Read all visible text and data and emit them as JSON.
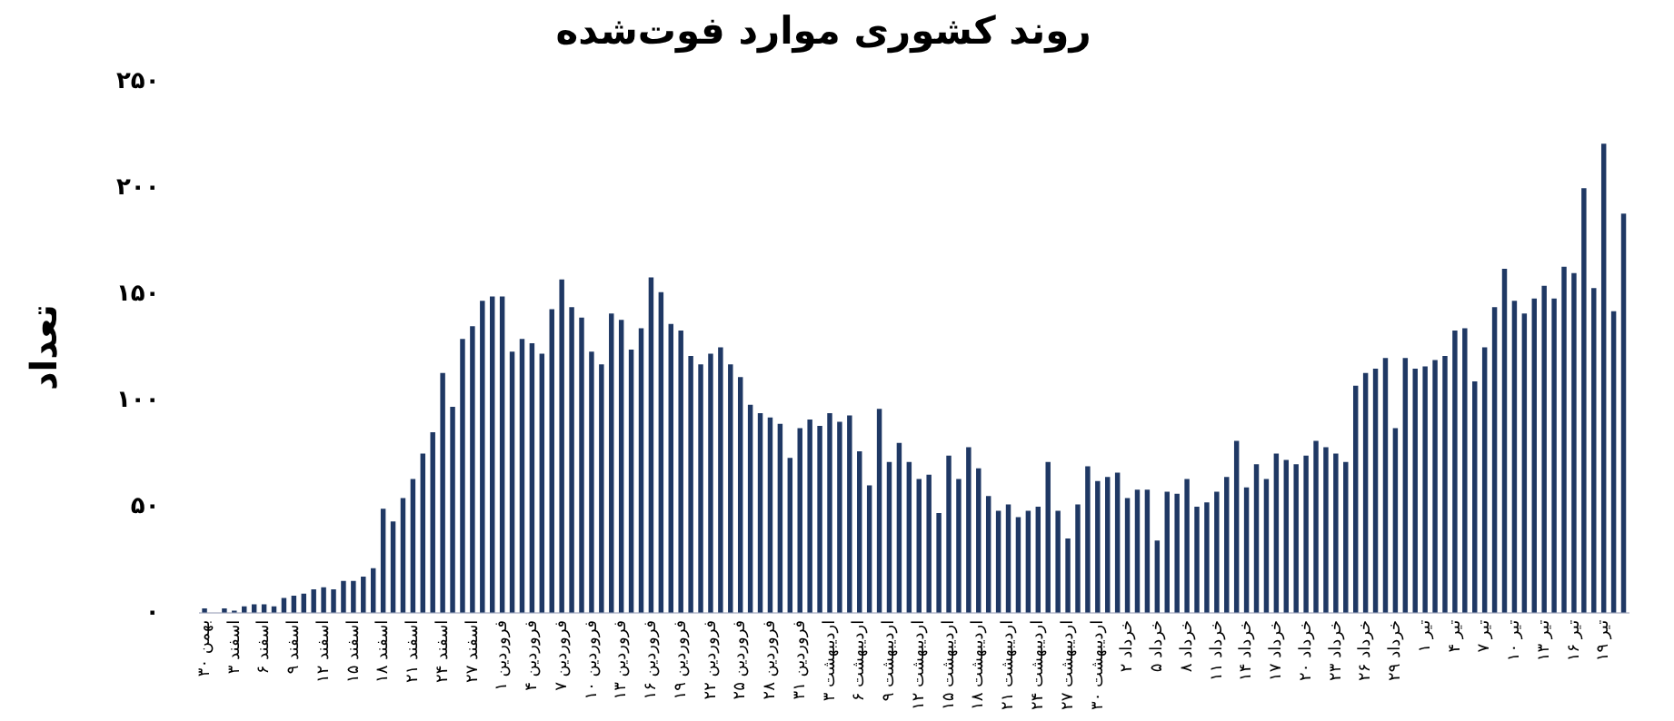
{
  "chart_data": {
    "type": "bar",
    "title": "روند کشوری موارد فوت‌شده",
    "ylabel": "تعداد",
    "categories": [
      "۳۰ بهمن",
      null,
      null,
      "۳ اسفند",
      null,
      null,
      "۶ اسفند",
      null,
      null,
      "۹ اسفند",
      null,
      null,
      "۱۲ اسفند",
      null,
      null,
      "۱۵ اسفند",
      null,
      null,
      "۱۸ اسفند",
      null,
      null,
      "۲۱ اسفند",
      null,
      null,
      "۲۴ اسفند",
      null,
      null,
      "۲۷ اسفند",
      null,
      null,
      "۱ فروردین",
      null,
      null,
      "۴ فروردین",
      null,
      null,
      "۷ فروردین",
      null,
      null,
      "۱۰ فروردین",
      null,
      null,
      "۱۳ فروردین",
      null,
      null,
      "۱۶ فروردین",
      null,
      null,
      "۱۹ فروردین",
      null,
      null,
      "۲۲ فروردین",
      null,
      null,
      "۲۵ فروردین",
      null,
      null,
      "۲۸ فروردین",
      null,
      null,
      "۳۱ فروردین",
      null,
      null,
      "۳ اردیبهشت",
      null,
      null,
      "۶ اردیبهشت",
      null,
      null,
      "۹ اردیبهشت",
      null,
      null,
      "۱۲ اردیبهشت",
      null,
      null,
      "۱۵ اردیبهشت",
      null,
      null,
      "۱۸ اردیبهشت",
      null,
      null,
      "۲۱ اردیبهشت",
      null,
      null,
      "۲۴ اردیبهشت",
      null,
      null,
      "۲۷ اردیبهشت",
      null,
      null,
      "۳۰ اردیبهشت",
      null,
      null,
      "۲ خرداد",
      null,
      null,
      "۵ خرداد",
      null,
      null,
      "۸ خرداد",
      null,
      null,
      "۱۱ خرداد",
      null,
      null,
      "۱۴ خرداد",
      null,
      null,
      "۱۷ خرداد",
      null,
      null,
      "۲۰ خرداد",
      null,
      null,
      "۲۳ خرداد",
      null,
      null,
      "۲۶ خرداد",
      null,
      null,
      "۲۹ خرداد",
      null,
      null,
      "۱ تیر",
      null,
      null,
      "۴ تیر",
      null,
      null,
      "۷ تیر",
      null,
      null,
      "۱۰ تیر",
      null,
      null,
      "۱۳ تیر",
      null,
      null,
      "۱۶ تیر",
      null,
      null,
      "۱۹ تیر",
      null,
      null
    ],
    "values": [
      2,
      0,
      2,
      1,
      3,
      4,
      4,
      3,
      7,
      8,
      9,
      11,
      12,
      11,
      15,
      15,
      17,
      21,
      49,
      43,
      54,
      63,
      75,
      85,
      113,
      97,
      129,
      135,
      147,
      149,
      149,
      123,
      129,
      127,
      122,
      143,
      157,
      144,
      139,
      123,
      117,
      141,
      138,
      124,
      134,
      158,
      151,
      136,
      133,
      121,
      117,
      122,
      125,
      117,
      111,
      98,
      94,
      92,
      89,
      73,
      87,
      91,
      88,
      94,
      90,
      93,
      76,
      60,
      96,
      71,
      80,
      71,
      63,
      65,
      47,
      74,
      63,
      78,
      68,
      55,
      48,
      51,
      45,
      48,
      50,
      71,
      48,
      35,
      51,
      69,
      62,
      64,
      66,
      54,
      58,
      58,
      34,
      57,
      56,
      63,
      50,
      52,
      57,
      64,
      81,
      59,
      70,
      63,
      75,
      72,
      70,
      74,
      81,
      78,
      75,
      71,
      107,
      113,
      115,
      120,
      87,
      120,
      115,
      116,
      119,
      121,
      133,
      134,
      109,
      125,
      144,
      162,
      147,
      141,
      148,
      154,
      148,
      163,
      160,
      200,
      153,
      221,
      142,
      188
    ],
    "color": "#1f3864",
    "ylim": [
      0,
      250
    ],
    "yticks": [
      {
        "value": 0,
        "label": "۰"
      },
      {
        "value": 50,
        "label": "۵۰"
      },
      {
        "value": 100,
        "label": "۱۰۰"
      },
      {
        "value": 150,
        "label": "۱۵۰"
      },
      {
        "value": 200,
        "label": "۲۰۰"
      },
      {
        "value": 250,
        "label": "۲۵۰"
      }
    ]
  }
}
